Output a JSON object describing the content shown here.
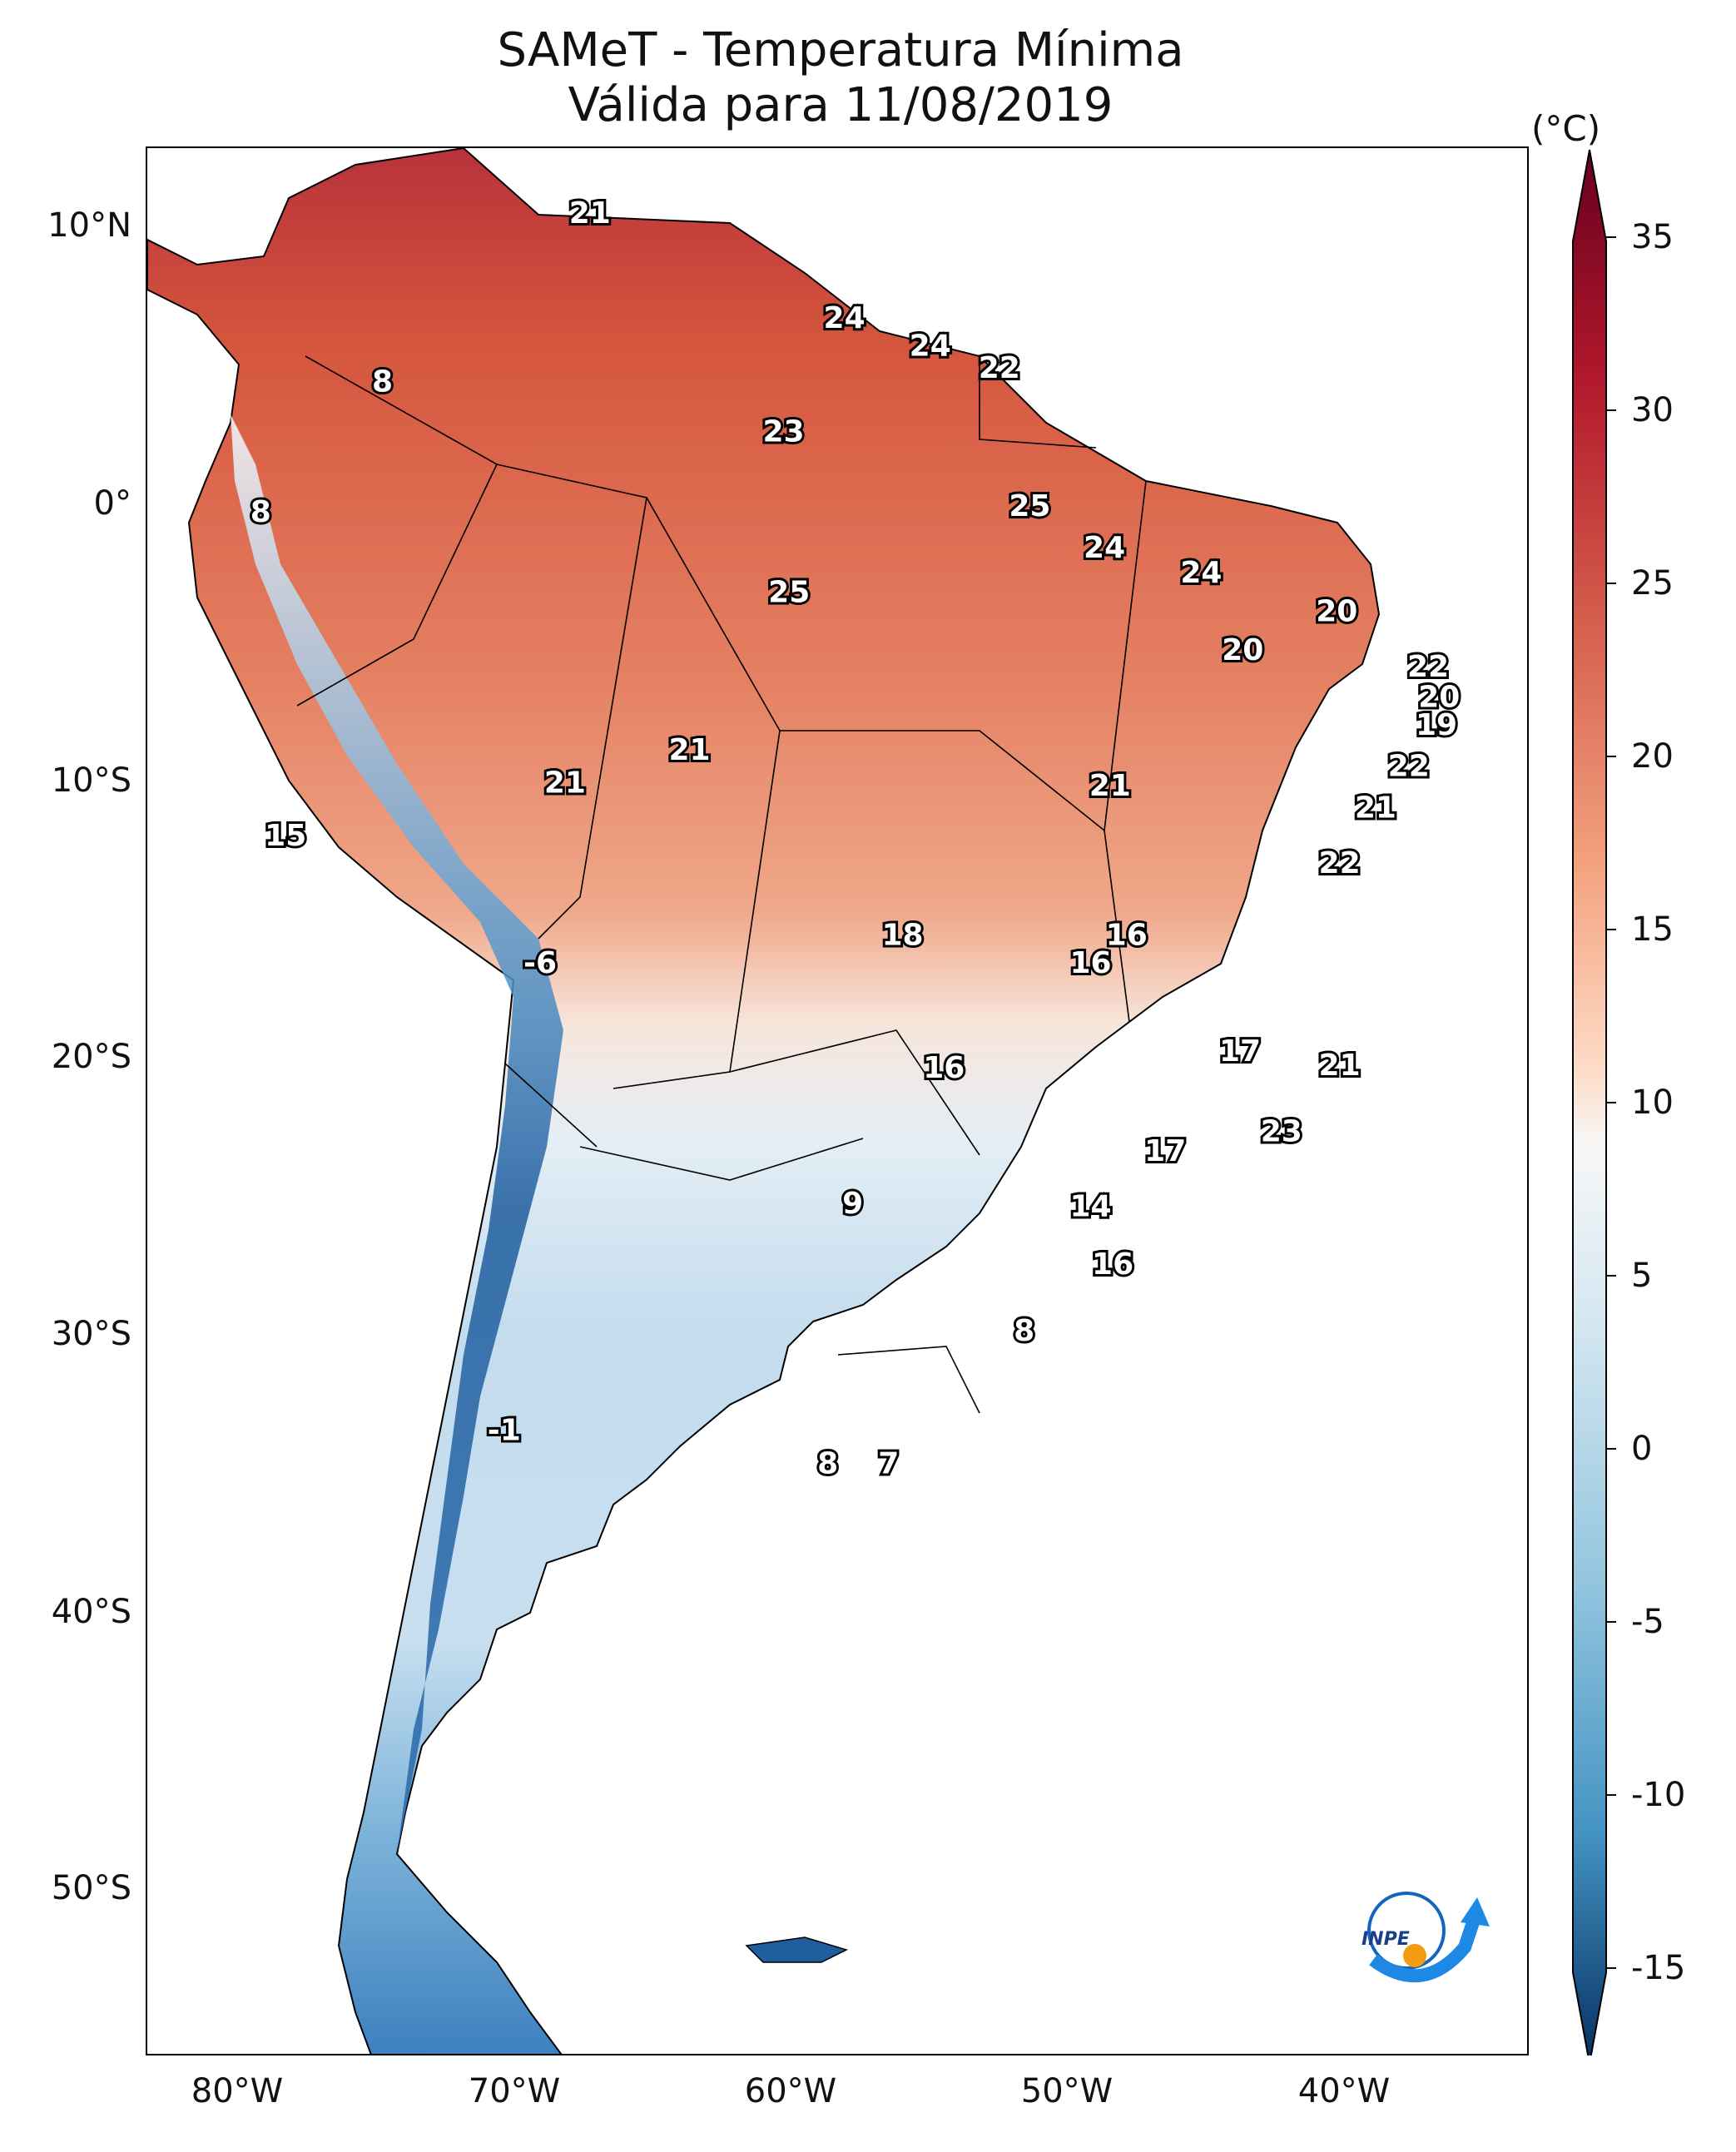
{
  "title": {
    "line1": "SAMeT - Temperatura Mínima",
    "line2": "Válida para 11/08/2019"
  },
  "axes": {
    "lon_ticks": [
      "80°W",
      "70°W",
      "60°W",
      "50°W",
      "40°W"
    ],
    "lat_ticks": [
      "10°N",
      "0°",
      "10°S",
      "20°S",
      "30°S",
      "40°S",
      "50°S"
    ],
    "lon_range": [
      -83,
      -33
    ],
    "lat_range": [
      -56,
      13
    ]
  },
  "colorbar": {
    "unit": "(°C)",
    "ticks": [
      "35",
      "30",
      "25",
      "20",
      "15",
      "10",
      "5",
      "0",
      "-5",
      "-10",
      "-15"
    ],
    "range": [
      -15,
      35
    ],
    "extend": "both",
    "colormap": "RdBu_r"
  },
  "map_data": {
    "type": "filled temperature map with point labels",
    "point_labels": [
      {
        "value": "21",
        "lon": -67.0,
        "lat": 10.6
      },
      {
        "value": "24",
        "lon": -57.8,
        "lat": 6.8
      },
      {
        "value": "24",
        "lon": -54.7,
        "lat": 5.8
      },
      {
        "value": "22",
        "lon": -52.2,
        "lat": 5.0
      },
      {
        "value": "8",
        "lon": -74.5,
        "lat": 4.5
      },
      {
        "value": "23",
        "lon": -60.0,
        "lat": 2.7
      },
      {
        "value": "8",
        "lon": -78.9,
        "lat": -0.2
      },
      {
        "value": "25",
        "lon": -51.1,
        "lat": 0.0
      },
      {
        "value": "24",
        "lon": -48.4,
        "lat": -1.5
      },
      {
        "value": "24",
        "lon": -44.9,
        "lat": -2.4
      },
      {
        "value": "25",
        "lon": -59.8,
        "lat": -3.1
      },
      {
        "value": "20",
        "lon": -40.0,
        "lat": -3.8
      },
      {
        "value": "20",
        "lon": -43.4,
        "lat": -5.2
      },
      {
        "value": "22",
        "lon": -36.7,
        "lat": -5.8
      },
      {
        "value": "20",
        "lon": -36.3,
        "lat": -6.9
      },
      {
        "value": "19",
        "lon": -36.4,
        "lat": -7.9
      },
      {
        "value": "21",
        "lon": -63.4,
        "lat": -8.8
      },
      {
        "value": "22",
        "lon": -37.4,
        "lat": -9.4
      },
      {
        "value": "21",
        "lon": -67.9,
        "lat": -10.0
      },
      {
        "value": "21",
        "lon": -48.2,
        "lat": -10.1
      },
      {
        "value": "21",
        "lon": -38.6,
        "lat": -10.9
      },
      {
        "value": "15",
        "lon": -78.0,
        "lat": -11.9
      },
      {
        "value": "22",
        "lon": -39.9,
        "lat": -12.9
      },
      {
        "value": "18",
        "lon": -55.7,
        "lat": -15.5
      },
      {
        "value": "16",
        "lon": -47.6,
        "lat": -15.5
      },
      {
        "value": "16",
        "lon": -48.9,
        "lat": -16.5
      },
      {
        "value": "-6",
        "lon": -68.8,
        "lat": -16.5
      },
      {
        "value": "17",
        "lon": -43.5,
        "lat": -19.7
      },
      {
        "value": "16",
        "lon": -54.2,
        "lat": -20.3
      },
      {
        "value": "21",
        "lon": -39.9,
        "lat": -20.2
      },
      {
        "value": "23",
        "lon": -42.0,
        "lat": -22.6
      },
      {
        "value": "17",
        "lon": -46.2,
        "lat": -23.3
      },
      {
        "value": "9",
        "lon": -57.5,
        "lat": -25.2
      },
      {
        "value": "14",
        "lon": -48.9,
        "lat": -25.3
      },
      {
        "value": "16",
        "lon": -48.1,
        "lat": -27.4
      },
      {
        "value": "8",
        "lon": -51.3,
        "lat": -29.8
      },
      {
        "value": "-1",
        "lon": -70.1,
        "lat": -33.4
      },
      {
        "value": "8",
        "lon": -58.4,
        "lat": -34.6
      },
      {
        "value": "7",
        "lon": -56.2,
        "lat": -34.6
      }
    ]
  },
  "logo": {
    "text": "INPE",
    "colors": {
      "ring": "#1565c0",
      "dot": "#f39c12",
      "arrow": "#1e88e5"
    }
  },
  "colors": {
    "hot": "#c0392b",
    "warm": "#e8846a",
    "neutral": "#f5f0ee",
    "cool": "#a9cfe6",
    "cold": "#2f6fb3",
    "frame": "#000000"
  }
}
